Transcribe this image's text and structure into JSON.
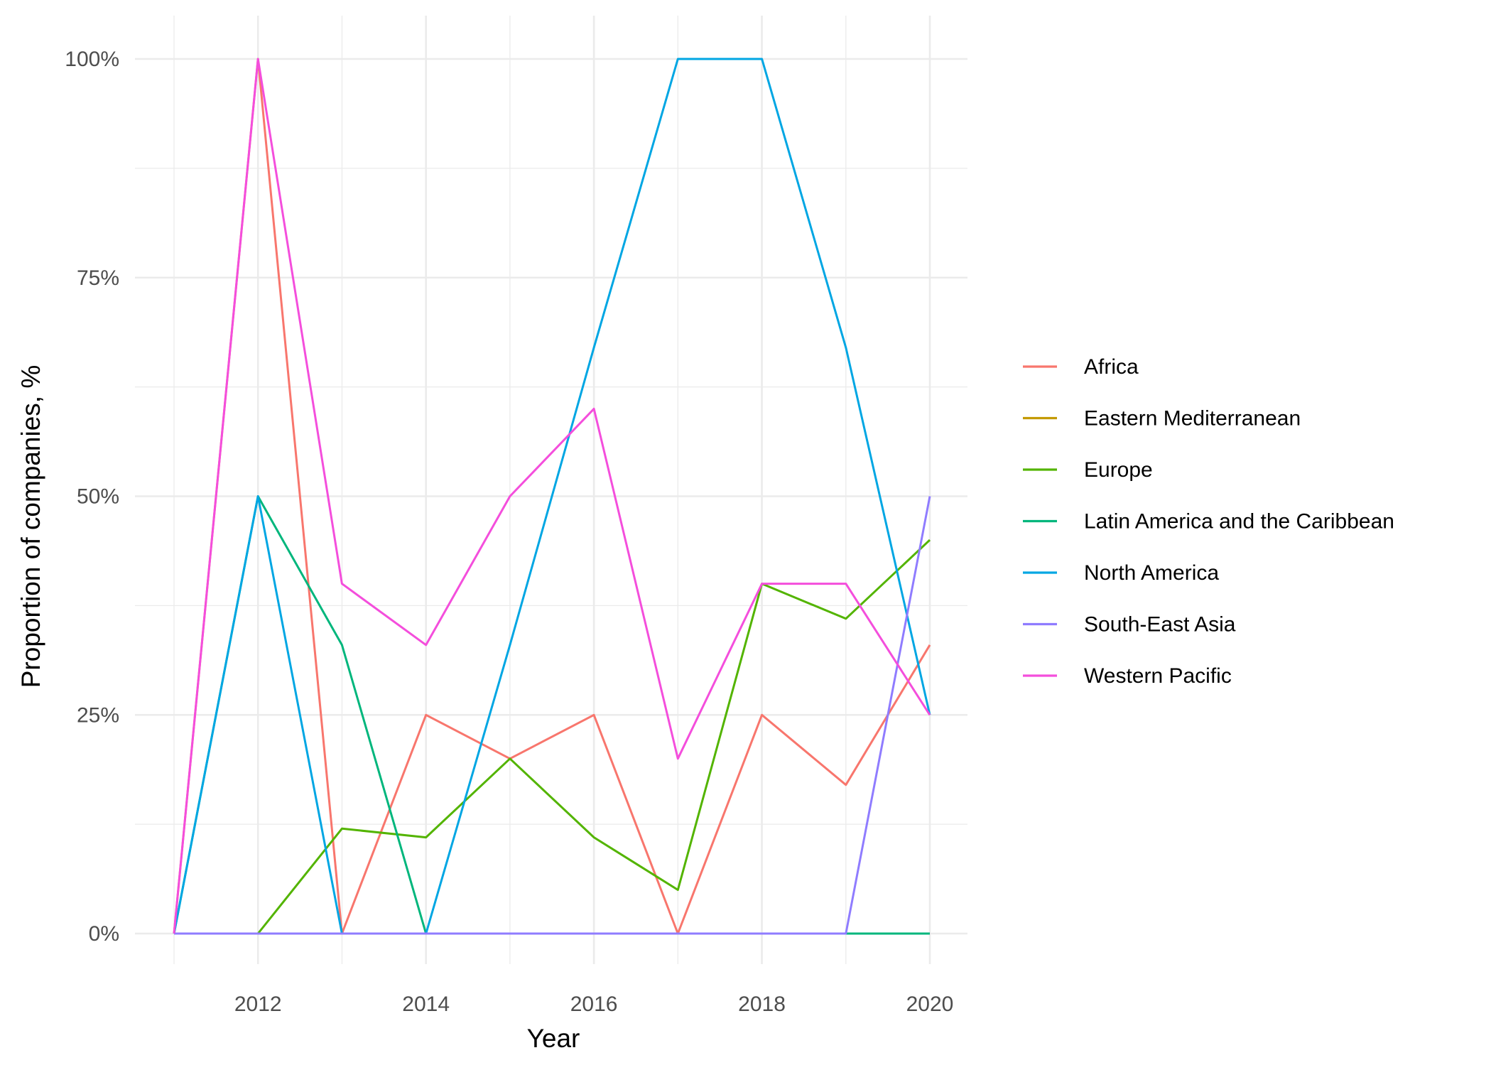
{
  "chart_data": {
    "type": "line",
    "xlabel": "Year",
    "ylabel": "Proportion of companies, %",
    "xlim": [
      2011,
      2020
    ],
    "ylim": [
      0,
      100
    ],
    "x_ticks": [
      2012,
      2014,
      2016,
      2018,
      2020
    ],
    "y_ticks": [
      "0%",
      "25%",
      "50%",
      "75%",
      "100%"
    ],
    "y_tick_values": [
      0,
      25,
      50,
      75,
      100
    ],
    "grid": true,
    "legend_position": "right",
    "x": [
      2011,
      2012,
      2013,
      2014,
      2015,
      2016,
      2017,
      2018,
      2019,
      2020
    ],
    "series": [
      {
        "name": "Africa",
        "color": "#F8766D",
        "values": [
          0,
          100,
          0,
          25,
          20,
          25,
          0,
          25,
          17,
          33
        ]
      },
      {
        "name": "Eastern Mediterranean",
        "color": "#C49A00",
        "values": [
          0,
          0,
          0,
          0,
          0,
          0,
          0,
          0,
          0,
          0
        ]
      },
      {
        "name": "Europe",
        "color": "#53B400",
        "values": [
          null,
          0,
          12,
          11,
          20,
          11,
          5,
          40,
          36,
          45
        ]
      },
      {
        "name": "Latin America and the Caribbean",
        "color": "#00B67C",
        "values": [
          0,
          50,
          33,
          0,
          0,
          0,
          0,
          0,
          0,
          0
        ]
      },
      {
        "name": "North America",
        "color": "#00A6E3",
        "values": [
          0,
          50,
          0,
          0,
          33,
          67,
          100,
          100,
          67,
          25
        ]
      },
      {
        "name": "South-East Asia",
        "color": "#8F7CFF",
        "values": [
          0,
          0,
          0,
          0,
          0,
          0,
          0,
          0,
          0,
          50
        ]
      },
      {
        "name": "Western Pacific",
        "color": "#F44EDC",
        "values": [
          0,
          100,
          40,
          33,
          50,
          60,
          20,
          40,
          40,
          25
        ]
      }
    ]
  }
}
